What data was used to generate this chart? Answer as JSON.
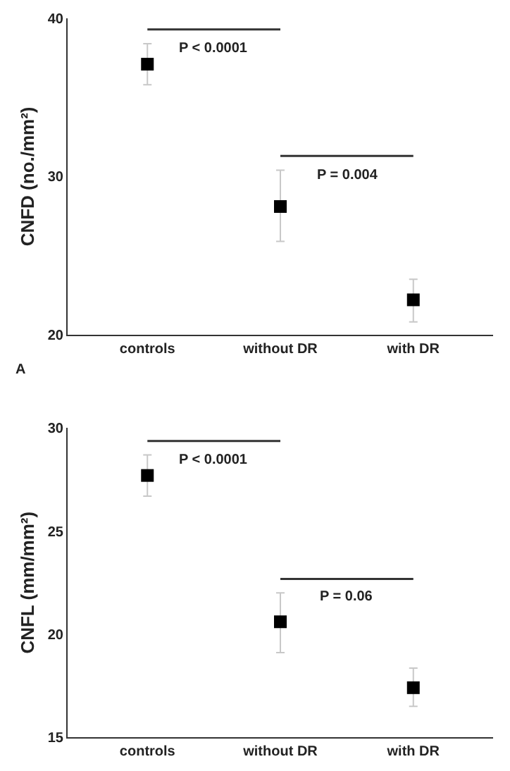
{
  "chart_data": [
    {
      "type": "scatter",
      "title": "A",
      "ylabel": "CNFD (no./mm²)",
      "categories": [
        "controls",
        "without DR",
        "with DR"
      ],
      "values": [
        37.1,
        28.1,
        22.2
      ],
      "errors": [
        [
          35.8,
          38.4
        ],
        [
          25.9,
          30.4
        ],
        [
          20.8,
          23.5
        ]
      ],
      "color": "#000000",
      "marker": "square",
      "ylim": [
        20,
        40
      ],
      "yticks": [
        20,
        30,
        40
      ],
      "annotations": [
        "P < 0.0001",
        "P = 0.004"
      ]
    },
    {
      "type": "scatter",
      "ylabel": "CNFL (mm/mm²)",
      "categories": [
        "controls",
        "without DR",
        "with DR"
      ],
      "values": [
        27.7,
        20.6,
        17.4
      ],
      "errors": [
        [
          26.7,
          28.7
        ],
        [
          19.1,
          22.0
        ],
        [
          16.5,
          18.35
        ]
      ],
      "color": "#000000",
      "marker": "square",
      "ylim": [
        15,
        30
      ],
      "yticks": [
        15,
        20,
        25,
        30
      ],
      "annotations": [
        "P < 0.0001",
        "P = 0.06"
      ]
    }
  ]
}
